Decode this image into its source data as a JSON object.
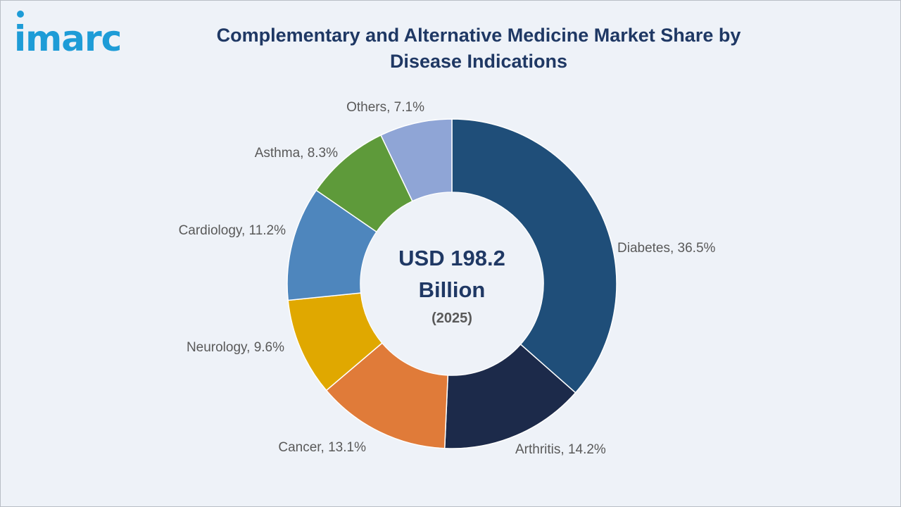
{
  "brand": {
    "logo_text": "imarc"
  },
  "chart_data": {
    "type": "pie",
    "title": "Complementary and Alternative Medicine Market Share by Disease Indications",
    "center": {
      "value": "USD 198.2",
      "unit": "Billion",
      "year": "(2025)"
    },
    "slices": [
      {
        "name": "Diabetes",
        "value": 36.5,
        "label": "Diabetes, 36.5%",
        "color": "#1f4e79"
      },
      {
        "name": "Arthritis",
        "value": 14.2,
        "label": "Arthritis, 14.2%",
        "color": "#1c2a4a"
      },
      {
        "name": "Cancer",
        "value": 13.1,
        "label": "Cancer, 13.1%",
        "color": "#e07b39"
      },
      {
        "name": "Neurology",
        "value": 9.6,
        "label": "Neurology, 9.6%",
        "color": "#e0a800"
      },
      {
        "name": "Cardiology",
        "value": 11.2,
        "label": "Cardiology, 11.2%",
        "color": "#4e86bd"
      },
      {
        "name": "Asthma",
        "value": 8.3,
        "label": "Asthma, 8.3%",
        "color": "#5e9a3a"
      },
      {
        "name": "Others",
        "value": 7.1,
        "label": "Others, 7.1%",
        "color": "#8fa5d6"
      }
    ]
  }
}
